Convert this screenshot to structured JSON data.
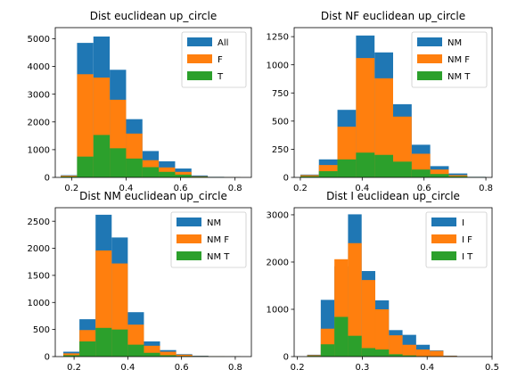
{
  "colors": {
    "blue": "#1f77b4",
    "orange": "#ff7f0e",
    "green": "#2ca02c"
  },
  "chart_data": [
    {
      "type": "histogram",
      "title": "Dist euclidean up_circle",
      "xlim": [
        0.14,
        0.86
      ],
      "ylim": [
        0,
        5400
      ],
      "xticks": [
        {
          "v": 0.2,
          "label": "0.2"
        },
        {
          "v": 0.4,
          "label": "0.4"
        },
        {
          "v": 0.6,
          "label": "0.6"
        },
        {
          "v": 0.8,
          "label": "0.8"
        }
      ],
      "yticks": [
        {
          "v": 0,
          "label": "0"
        },
        {
          "v": 1000,
          "label": "1000"
        },
        {
          "v": 2000,
          "label": "2000"
        },
        {
          "v": 3000,
          "label": "3000"
        },
        {
          "v": 4000,
          "label": "4000"
        },
        {
          "v": 5000,
          "label": "5000"
        }
      ],
      "legend_position": "upper right",
      "series": [
        {
          "name": "All",
          "color": "#1f77b4",
          "bins": [
            [
              0.16,
              0.22,
              80
            ],
            [
              0.22,
              0.28,
              4850
            ],
            [
              0.28,
              0.34,
              5080
            ],
            [
              0.34,
              0.4,
              3880
            ],
            [
              0.4,
              0.46,
              2100
            ],
            [
              0.46,
              0.52,
              950
            ],
            [
              0.52,
              0.58,
              580
            ],
            [
              0.58,
              0.64,
              320
            ],
            [
              0.64,
              0.7,
              70
            ],
            [
              0.7,
              0.76,
              20
            ],
            [
              0.76,
              0.82,
              8
            ]
          ]
        },
        {
          "name": "F",
          "color": "#ff7f0e",
          "bins": [
            [
              0.16,
              0.22,
              60
            ],
            [
              0.22,
              0.28,
              3720
            ],
            [
              0.28,
              0.34,
              3600
            ],
            [
              0.34,
              0.4,
              2800
            ],
            [
              0.4,
              0.46,
              1580
            ],
            [
              0.46,
              0.52,
              620
            ],
            [
              0.52,
              0.58,
              360
            ],
            [
              0.58,
              0.64,
              200
            ],
            [
              0.64,
              0.7,
              40
            ],
            [
              0.7,
              0.76,
              12
            ],
            [
              0.76,
              0.82,
              5
            ]
          ]
        },
        {
          "name": "T",
          "color": "#2ca02c",
          "bins": [
            [
              0.16,
              0.22,
              30
            ],
            [
              0.22,
              0.28,
              750
            ],
            [
              0.28,
              0.34,
              1530
            ],
            [
              0.34,
              0.4,
              1050
            ],
            [
              0.4,
              0.46,
              680
            ],
            [
              0.46,
              0.52,
              370
            ],
            [
              0.52,
              0.58,
              200
            ],
            [
              0.58,
              0.64,
              100
            ],
            [
              0.64,
              0.7,
              25
            ],
            [
              0.7,
              0.76,
              8
            ],
            [
              0.76,
              0.82,
              3
            ]
          ]
        }
      ]
    },
    {
      "type": "histogram",
      "title": "Dist NF euclidean up_circle",
      "xlim": [
        0.18,
        0.82
      ],
      "ylim": [
        0,
        1330
      ],
      "xticks": [
        {
          "v": 0.2,
          "label": "0.2"
        },
        {
          "v": 0.4,
          "label": "0.4"
        },
        {
          "v": 0.6,
          "label": "0.6"
        },
        {
          "v": 0.8,
          "label": "0.8"
        }
      ],
      "yticks": [
        {
          "v": 0,
          "label": "0"
        },
        {
          "v": 250,
          "label": "250"
        },
        {
          "v": 500,
          "label": "500"
        },
        {
          "v": 750,
          "label": "750"
        },
        {
          "v": 1000,
          "label": "1000"
        },
        {
          "v": 1250,
          "label": "1250"
        }
      ],
      "legend_position": "upper right",
      "series": [
        {
          "name": "NM",
          "color": "#1f77b4",
          "bins": [
            [
              0.2,
              0.26,
              25
            ],
            [
              0.26,
              0.32,
              160
            ],
            [
              0.32,
              0.38,
              600
            ],
            [
              0.38,
              0.44,
              1260
            ],
            [
              0.44,
              0.5,
              1110
            ],
            [
              0.5,
              0.56,
              650
            ],
            [
              0.56,
              0.62,
              290
            ],
            [
              0.62,
              0.68,
              100
            ],
            [
              0.68,
              0.74,
              35
            ],
            [
              0.74,
              0.8,
              5
            ]
          ]
        },
        {
          "name": "NM F",
          "color": "#ff7f0e",
          "bins": [
            [
              0.2,
              0.26,
              20
            ],
            [
              0.26,
              0.32,
              110
            ],
            [
              0.32,
              0.38,
              450
            ],
            [
              0.38,
              0.44,
              1060
            ],
            [
              0.44,
              0.5,
              880
            ],
            [
              0.5,
              0.56,
              540
            ],
            [
              0.56,
              0.62,
              210
            ],
            [
              0.62,
              0.68,
              70
            ],
            [
              0.68,
              0.74,
              20
            ],
            [
              0.74,
              0.8,
              3
            ]
          ]
        },
        {
          "name": "NM T",
          "color": "#2ca02c",
          "bins": [
            [
              0.2,
              0.26,
              10
            ],
            [
              0.26,
              0.32,
              55
            ],
            [
              0.32,
              0.38,
              160
            ],
            [
              0.38,
              0.44,
              220
            ],
            [
              0.44,
              0.5,
              200
            ],
            [
              0.5,
              0.56,
              140
            ],
            [
              0.56,
              0.62,
              70
            ],
            [
              0.62,
              0.68,
              30
            ],
            [
              0.68,
              0.74,
              10
            ],
            [
              0.74,
              0.8,
              2
            ]
          ]
        }
      ]
    },
    {
      "type": "histogram",
      "title": "Dist NM euclidean up_circle",
      "xlim": [
        0.13,
        0.86
      ],
      "ylim": [
        0,
        2750
      ],
      "xticks": [
        {
          "v": 0.2,
          "label": "0.2"
        },
        {
          "v": 0.4,
          "label": "0.4"
        },
        {
          "v": 0.6,
          "label": "0.6"
        },
        {
          "v": 0.8,
          "label": "0.8"
        }
      ],
      "yticks": [
        {
          "v": 0,
          "label": "0"
        },
        {
          "v": 500,
          "label": "500"
        },
        {
          "v": 1000,
          "label": "1000"
        },
        {
          "v": 1500,
          "label": "1500"
        },
        {
          "v": 2000,
          "label": "2000"
        },
        {
          "v": 2500,
          "label": "2500"
        }
      ],
      "legend_position": "upper right",
      "series": [
        {
          "name": "NM",
          "color": "#1f77b4",
          "bins": [
            [
              0.16,
              0.22,
              90
            ],
            [
              0.22,
              0.28,
              690
            ],
            [
              0.28,
              0.34,
              2620
            ],
            [
              0.34,
              0.4,
              2200
            ],
            [
              0.4,
              0.46,
              820
            ],
            [
              0.46,
              0.52,
              280
            ],
            [
              0.52,
              0.58,
              120
            ],
            [
              0.58,
              0.64,
              45
            ],
            [
              0.64,
              0.7,
              15
            ],
            [
              0.7,
              0.76,
              5
            ],
            [
              0.76,
              0.82,
              3
            ]
          ]
        },
        {
          "name": "NM F",
          "color": "#ff7f0e",
          "bins": [
            [
              0.16,
              0.22,
              60
            ],
            [
              0.22,
              0.28,
              490
            ],
            [
              0.28,
              0.34,
              1960
            ],
            [
              0.34,
              0.4,
              1720
            ],
            [
              0.4,
              0.46,
              590
            ],
            [
              0.46,
              0.52,
              200
            ],
            [
              0.52,
              0.58,
              90
            ],
            [
              0.58,
              0.64,
              35
            ],
            [
              0.64,
              0.7,
              10
            ],
            [
              0.7,
              0.76,
              4
            ],
            [
              0.76,
              0.82,
              2
            ]
          ]
        },
        {
          "name": "NM T",
          "color": "#2ca02c",
          "bins": [
            [
              0.16,
              0.22,
              25
            ],
            [
              0.22,
              0.28,
              280
            ],
            [
              0.28,
              0.34,
              530
            ],
            [
              0.34,
              0.4,
              500
            ],
            [
              0.4,
              0.46,
              220
            ],
            [
              0.46,
              0.52,
              70
            ],
            [
              0.52,
              0.58,
              25
            ],
            [
              0.58,
              0.64,
              10
            ],
            [
              0.64,
              0.7,
              4
            ],
            [
              0.7,
              0.76,
              2
            ],
            [
              0.76,
              0.82,
              1
            ]
          ]
        }
      ]
    },
    {
      "type": "histogram",
      "title": "Dist I euclidean up_circle",
      "xlim": [
        0.195,
        0.5
      ],
      "ylim": [
        0,
        3150
      ],
      "xticks": [
        {
          "v": 0.2,
          "label": "0.2"
        },
        {
          "v": 0.3,
          "label": "0.3"
        },
        {
          "v": 0.4,
          "label": "0.4"
        },
        {
          "v": 0.5,
          "label": "0.5"
        }
      ],
      "yticks": [
        {
          "v": 0,
          "label": "0"
        },
        {
          "v": 1000,
          "label": "1000"
        },
        {
          "v": 2000,
          "label": "2000"
        },
        {
          "v": 3000,
          "label": "3000"
        }
      ],
      "legend_position": "upper right",
      "series": [
        {
          "name": "I",
          "color": "#1f77b4",
          "bins": [
            [
              0.215,
              0.236,
              40
            ],
            [
              0.236,
              0.257,
              1200
            ],
            [
              0.257,
              0.278,
              1910
            ],
            [
              0.278,
              0.299,
              3010
            ],
            [
              0.299,
              0.32,
              1810
            ],
            [
              0.32,
              0.341,
              1190
            ],
            [
              0.341,
              0.362,
              560
            ],
            [
              0.362,
              0.383,
              460
            ],
            [
              0.383,
              0.404,
              250
            ],
            [
              0.404,
              0.425,
              130
            ],
            [
              0.425,
              0.446,
              20
            ]
          ]
        },
        {
          "name": "I F",
          "color": "#ff7f0e",
          "bins": [
            [
              0.215,
              0.236,
              30
            ],
            [
              0.236,
              0.257,
              590
            ],
            [
              0.257,
              0.278,
              2060
            ],
            [
              0.278,
              0.299,
              2400
            ],
            [
              0.299,
              0.32,
              1620
            ],
            [
              0.32,
              0.341,
              1000
            ],
            [
              0.341,
              0.362,
              450
            ],
            [
              0.362,
              0.383,
              250
            ],
            [
              0.383,
              0.404,
              150
            ],
            [
              0.404,
              0.425,
              120
            ],
            [
              0.425,
              0.446,
              15
            ]
          ]
        },
        {
          "name": "I T",
          "color": "#2ca02c",
          "bins": [
            [
              0.215,
              0.236,
              15
            ],
            [
              0.236,
              0.257,
              260
            ],
            [
              0.257,
              0.278,
              840
            ],
            [
              0.278,
              0.299,
              440
            ],
            [
              0.299,
              0.32,
              180
            ],
            [
              0.32,
              0.341,
              150
            ],
            [
              0.341,
              0.362,
              50
            ],
            [
              0.362,
              0.383,
              25
            ],
            [
              0.383,
              0.404,
              10
            ],
            [
              0.404,
              0.425,
              5
            ],
            [
              0.425,
              0.446,
              2
            ]
          ]
        }
      ]
    }
  ]
}
